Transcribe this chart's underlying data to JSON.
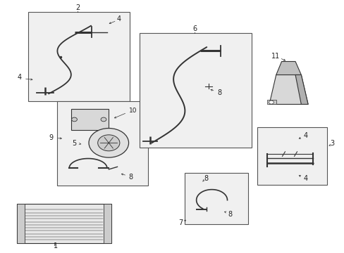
{
  "background_color": "#ffffff",
  "fig_width": 4.89,
  "fig_height": 3.6,
  "dpi": 100,
  "line_color": "#333333",
  "text_color": "#222222",
  "box_edge_color": "#555555",
  "box_fill_color": "#f0f0f0",
  "font_size": 7
}
